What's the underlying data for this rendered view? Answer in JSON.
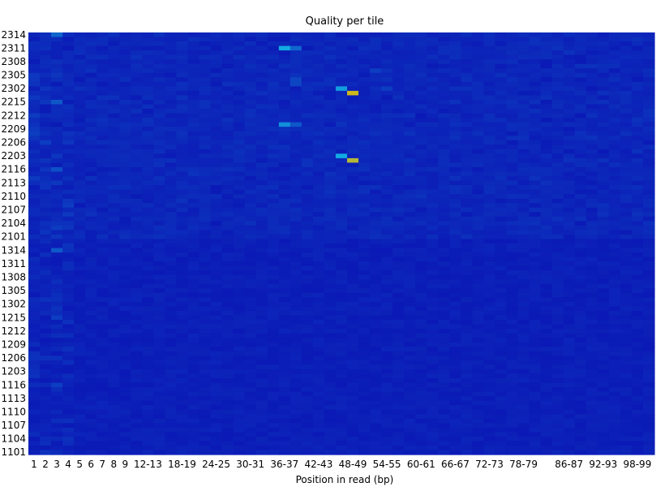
{
  "chart_data": {
    "type": "heatmap",
    "title": "Quality per tile",
    "xlabel": "Position in read (bp)",
    "ylabel": "",
    "x_ticks": [
      "1",
      "2",
      "3",
      "4",
      "5",
      "6",
      "7",
      "8",
      "9",
      "12-13",
      "18-19",
      "24-25",
      "30-31",
      "36-37",
      "42-43",
      "48-49",
      "54-55",
      "60-61",
      "66-67",
      "72-73",
      "78-79",
      "86-87",
      "92-93",
      "98-99"
    ],
    "x_bins": [
      "1",
      "2",
      "3",
      "4",
      "5",
      "6",
      "7",
      "8",
      "9",
      "10-11",
      "12-13",
      "14-15",
      "16-17",
      "18-19",
      "20-21",
      "22-23",
      "24-25",
      "26-27",
      "28-29",
      "30-31",
      "32-33",
      "34-35",
      "36-37",
      "38-39",
      "40-41",
      "42-43",
      "44-45",
      "46-47",
      "48-49",
      "50-51",
      "52-53",
      "54-55",
      "56-57",
      "58-59",
      "60-61",
      "62-63",
      "64-65",
      "66-67",
      "68-69",
      "70-71",
      "72-73",
      "74-75",
      "76-77",
      "78-79",
      "80-81",
      "82-83",
      "84-85",
      "86-87",
      "88-89",
      "90-91",
      "92-93",
      "94-95",
      "96-97",
      "98-99",
      "100-101"
    ],
    "tiles": [
      "2314",
      "2313",
      "2312",
      "2311",
      "2310",
      "2309",
      "2308",
      "2307",
      "2306",
      "2305",
      "2304",
      "2303",
      "2302",
      "2301",
      "2216",
      "2215",
      "2214",
      "2213",
      "2212",
      "2211",
      "2210",
      "2209",
      "2208",
      "2207",
      "2206",
      "2205",
      "2204",
      "2203",
      "2202",
      "2201",
      "2116",
      "2115",
      "2114",
      "2113",
      "2112",
      "2111",
      "2110",
      "2109",
      "2108",
      "2107",
      "2106",
      "2105",
      "2104",
      "2103",
      "2102",
      "2101",
      "1316",
      "1315",
      "1314",
      "1313",
      "1312",
      "1311",
      "1310",
      "1309",
      "1308",
      "1307",
      "1306",
      "1305",
      "1304",
      "1303",
      "1302",
      "1301",
      "1216",
      "1215",
      "1214",
      "1213",
      "1212",
      "1211",
      "1210",
      "1209",
      "1208",
      "1207",
      "1206",
      "1205",
      "1204",
      "1203",
      "1202",
      "1201",
      "1116",
      "1115",
      "1114",
      "1113",
      "1112",
      "1111",
      "1110",
      "1109",
      "1108",
      "1107",
      "1106",
      "1105",
      "1104",
      "1103",
      "1102",
      "1101"
    ],
    "y_ticks": [
      "2314",
      "2311",
      "2308",
      "2305",
      "2302",
      "2215",
      "2212",
      "2209",
      "2206",
      "2203",
      "2116",
      "2113",
      "2110",
      "2107",
      "2104",
      "2101",
      "1314",
      "1311",
      "1308",
      "1305",
      "1302",
      "1215",
      "1212",
      "1209",
      "1206",
      "1203",
      "1116",
      "1113",
      "1110",
      "1107",
      "1104",
      "1101"
    ],
    "colors": {
      "low": "#0b14b4",
      "mid": "#13b8e6",
      "high": "#e8b800"
    },
    "hotspots": [
      {
        "tile": "2311",
        "x_bin": "36-37",
        "level": 0.55
      },
      {
        "tile": "2311",
        "x_bin": "38-39",
        "level": 0.3
      },
      {
        "tile": "2210",
        "x_bin": "36-37",
        "level": 0.45
      },
      {
        "tile": "2210",
        "x_bin": "38-39",
        "level": 0.25
      },
      {
        "tile": "2304",
        "x_bin": "38-39",
        "level": 0.18
      },
      {
        "tile": "2303",
        "x_bin": "38-39",
        "level": 0.18
      },
      {
        "tile": "2302",
        "x_bin": "46-47",
        "level": 0.5
      },
      {
        "tile": "2301",
        "x_bin": "48-49",
        "level": 0.95
      },
      {
        "tile": "2203",
        "x_bin": "46-47",
        "level": 0.55
      },
      {
        "tile": "2202",
        "x_bin": "48-49",
        "level": 0.9
      },
      {
        "tile": "2306",
        "x_bin": "52-53",
        "level": 0.15
      },
      {
        "tile": "2302",
        "x_bin": "54-55",
        "level": 0.15
      },
      {
        "tile": "2314",
        "x_bin": "3",
        "level": 0.3
      },
      {
        "tile": "2215",
        "x_bin": "3",
        "level": 0.25
      },
      {
        "tile": "2116",
        "x_bin": "3",
        "level": 0.22
      },
      {
        "tile": "1314",
        "x_bin": "3",
        "level": 0.25
      },
      {
        "tile": "1215",
        "x_bin": "3",
        "level": 0.15
      },
      {
        "tile": "1116",
        "x_bin": "3",
        "level": 0.15
      }
    ]
  }
}
